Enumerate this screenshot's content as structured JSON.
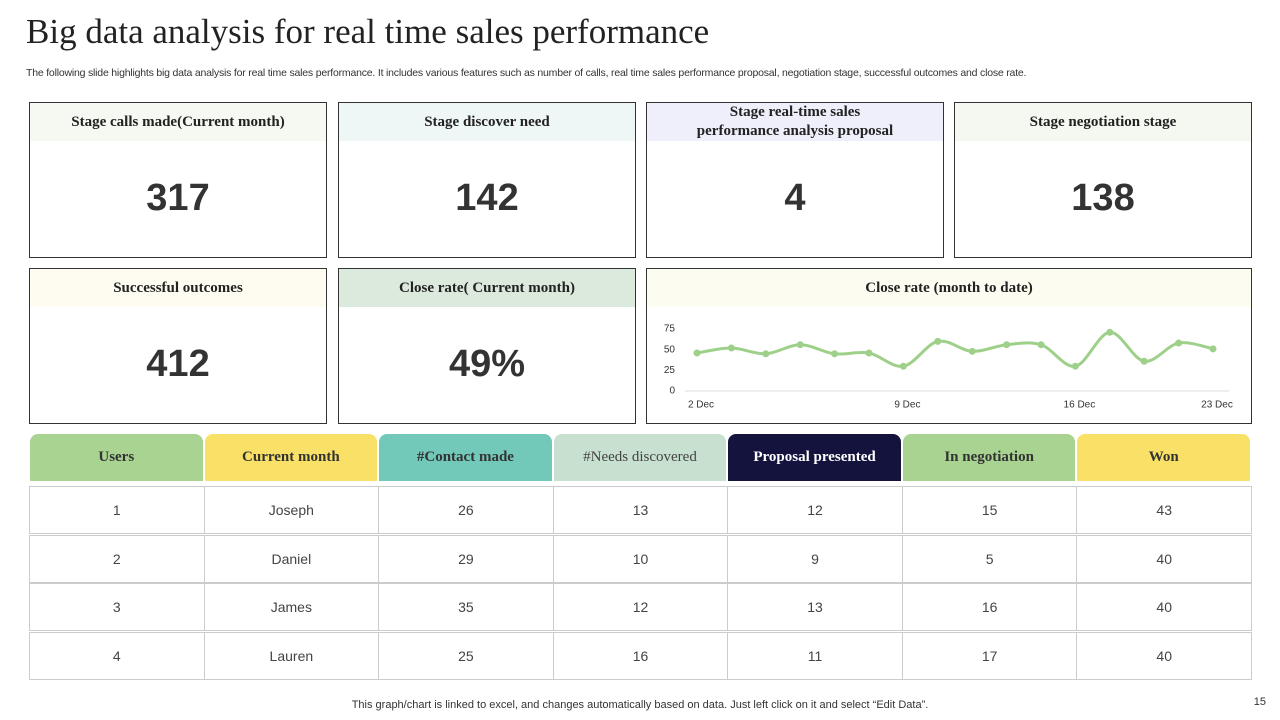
{
  "title": "Big data analysis for real time sales performance",
  "subtitle": "The following slide highlights big data analysis for real time sales performance. It includes various features such as number of calls, real time sales performance proposal, negotiation stage, successful outcomes and close rate.",
  "kpis": [
    {
      "label": "Stage calls  made(Current month)",
      "value": 317
    },
    {
      "label": "Stage discover need",
      "value": 142
    },
    {
      "label": "Stage real-time sales performance analysis proposal",
      "value": 4
    },
    {
      "label": "Stage negotiation stage",
      "value": 138
    },
    {
      "label": "Successful outcomes",
      "value": 412
    },
    {
      "label": "Close rate( Current month)",
      "value": "49%"
    }
  ],
  "chart_data": {
    "type": "line",
    "title": "Close rate (month to date)",
    "categories": [
      "2 Dec",
      null,
      null,
      null,
      null,
      null,
      "9 Dec",
      null,
      null,
      null,
      null,
      "16 Dec",
      null,
      null,
      null,
      "23 Dec"
    ],
    "series": [
      {
        "color": "#9fd08a",
        "values": [
          46,
          52,
          45,
          56,
          45,
          46,
          30,
          60,
          48,
          56,
          56,
          30,
          71,
          36,
          58,
          51
        ]
      }
    ],
    "ylim": [
      0,
      75
    ],
    "yticks": [
      0,
      25,
      50,
      75
    ]
  },
  "table": {
    "header": [
      "Users",
      "Current month",
      "#Contact made",
      "#Needs discovered",
      "Proposal presented",
      "In negotiation",
      "Won"
    ],
    "header_colors": [
      "#a8d390",
      "#f9e167",
      "#72c9b9",
      "#c8e0cf",
      "#13133e",
      "#a8d390",
      "#f9e167"
    ],
    "rows": [
      [
        1,
        "Joseph",
        26,
        13,
        12,
        15,
        43
      ],
      [
        2,
        "Daniel",
        29,
        10,
        9,
        5,
        40
      ],
      [
        3,
        "James",
        35,
        12,
        13,
        16,
        40
      ],
      [
        4,
        "Lauren",
        25,
        16,
        11,
        17,
        40
      ]
    ]
  },
  "footer": "This graph/chart is linked to excel,  and changes automatically based on data. Just left click on it and select “Edit Data”.",
  "page_number": 15
}
